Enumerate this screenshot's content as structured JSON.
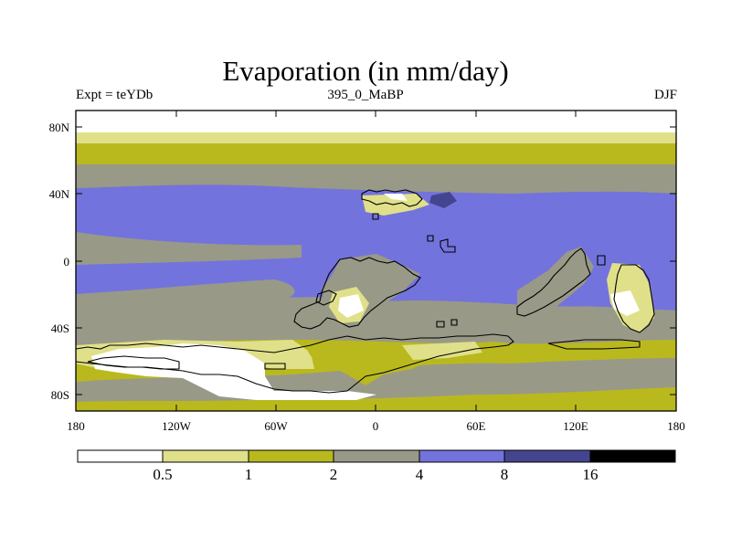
{
  "title": "Evaporation (in mm/day)",
  "left_label": "Expt = teYDb",
  "center_label": "395_0_MaBP",
  "right_label": "DJF",
  "map": {
    "lat_ticks": [
      "80N",
      "40N",
      "0",
      "40S",
      "80S"
    ],
    "lon_ticks": [
      "180",
      "120W",
      "60W",
      "0",
      "60E",
      "120E",
      "180"
    ]
  },
  "colorbar": {
    "levels": [
      "0.5",
      "1",
      "2",
      "4",
      "8",
      "16"
    ],
    "colors": [
      "#ffffff",
      "#e0e08a",
      "#b9b91e",
      "#999988",
      "#7373dd",
      "#45458f",
      "#000000"
    ]
  }
}
